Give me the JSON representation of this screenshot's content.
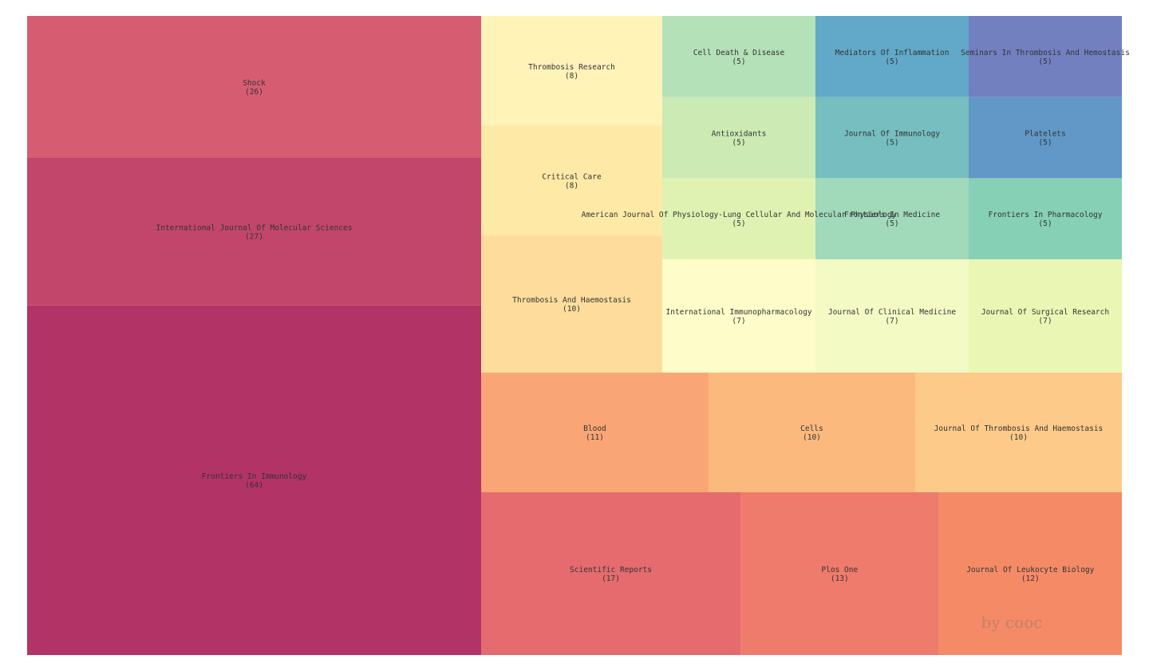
{
  "chart_data": {
    "type": "treemap",
    "title": "",
    "watermark": "by cooc",
    "items": [
      {
        "name": "Frontiers In Immunology",
        "value": 64,
        "color": "#b23366"
      },
      {
        "name": "International Journal Of Molecular Sciences",
        "value": 27,
        "color": "#c2466b"
      },
      {
        "name": "Shock",
        "value": 26,
        "color": "#d65c72"
      },
      {
        "name": "Scientific Reports",
        "value": 17,
        "color": "#e56b6e"
      },
      {
        "name": "Plos One",
        "value": 13,
        "color": "#ef7b6c"
      },
      {
        "name": "Journal Of Leukocyte Biology",
        "value": 12,
        "color": "#f48b66"
      },
      {
        "name": "Blood",
        "value": 11,
        "color": "#f9a575"
      },
      {
        "name": "Cells",
        "value": 10,
        "color": "#fbb97e"
      },
      {
        "name": "Journal Of Thrombosis And Haemostasis",
        "value": 10,
        "color": "#fdca8a"
      },
      {
        "name": "Thrombosis And Haemostasis",
        "value": 10,
        "color": "#fedd9c"
      },
      {
        "name": "Critical Care",
        "value": 8,
        "color": "#fee9a6"
      },
      {
        "name": "Thrombosis Research",
        "value": 8,
        "color": "#fff3b8"
      },
      {
        "name": "International Immunopharmacology",
        "value": 7,
        "color": "#fefdc9"
      },
      {
        "name": "Journal Of Clinical Medicine",
        "value": 7,
        "color": "#f4fac4"
      },
      {
        "name": "Journal Of Surgical Research",
        "value": 7,
        "color": "#eaf7b4"
      },
      {
        "name": "American Journal Of Physiology-Lung Cellular And Molecular Physiology",
        "value": 5,
        "color": "#dff2b2"
      },
      {
        "name": "Antioxidants",
        "value": 5,
        "color": "#cbeab4"
      },
      {
        "name": "Cell Death & Disease",
        "value": 5,
        "color": "#b4e1b8"
      },
      {
        "name": "Frontiers In Medicine",
        "value": 5,
        "color": "#a1d9bb"
      },
      {
        "name": "Frontiers In Pharmacology",
        "value": 5,
        "color": "#86d0b6"
      },
      {
        "name": "Journal Of Immunology",
        "value": 5,
        "color": "#76bec0"
      },
      {
        "name": "Mediators Of Inflammation",
        "value": 5,
        "color": "#62a8c8"
      },
      {
        "name": "Platelets",
        "value": 5,
        "color": "#6198c8"
      },
      {
        "name": "Seminars In Thrombosis And Hemostasis",
        "value": 5,
        "color": "#7280c0"
      }
    ]
  }
}
